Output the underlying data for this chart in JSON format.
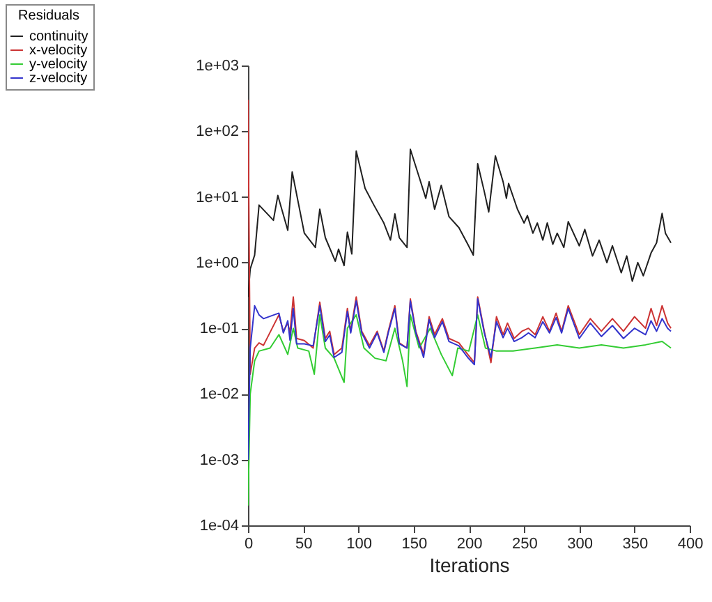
{
  "chart_data": {
    "type": "line",
    "xlabel": "Iterations",
    "legend_title": "Residuals",
    "legend": "top left",
    "log": "y",
    "grid": false,
    "marker": "none",
    "line_style": "solid",
    "xlim": [
      0,
      400
    ],
    "xticks": [
      0,
      50,
      100,
      150,
      200,
      250,
      300,
      350,
      400
    ],
    "ylim": [
      0.0001,
      1000
    ],
    "yticks": [
      {
        "value": 1000,
        "label": "1e+03"
      },
      {
        "value": 100,
        "label": "1e+02"
      },
      {
        "value": 10,
        "label": "1e+01"
      },
      {
        "value": 1,
        "label": "1e+00"
      },
      {
        "value": 0.1,
        "label": "1e-01"
      },
      {
        "value": 0.01,
        "label": "1e-02"
      },
      {
        "value": 0.001,
        "label": "1e-03"
      },
      {
        "value": 0.0001,
        "label": "1e-04"
      }
    ],
    "series": [
      {
        "name": "continuity",
        "color": "#202020",
        "x": [
          0,
          2,
          6,
          10,
          23,
          27,
          36,
          40,
          51,
          61,
          65,
          70,
          79,
          82,
          87,
          90,
          94,
          98,
          106,
          114,
          123,
          129,
          133,
          137,
          144,
          147,
          155,
          161,
          164,
          169,
          175,
          182,
          191,
          199,
          204,
          208,
          214,
          218,
          224,
          231,
          234,
          236,
          244,
          250,
          253,
          258,
          262,
          267,
          271,
          276,
          280,
          286,
          290,
          300,
          305,
          312,
          318,
          325,
          330,
          338,
          343,
          348,
          353,
          358,
          365,
          370,
          375,
          378,
          383
        ],
        "values": [
          0.3,
          0.8,
          1.3,
          7.5,
          4.4,
          10.5,
          3.1,
          24,
          2.8,
          1.7,
          6.5,
          2.4,
          1.05,
          1.6,
          0.9,
          2.9,
          1.35,
          50,
          13.5,
          7.5,
          4,
          2.2,
          5.5,
          2.4,
          1.7,
          53,
          20,
          9.5,
          17,
          6.5,
          15,
          5,
          3.4,
          1.9,
          1.3,
          32,
          12,
          5.9,
          42,
          17,
          9.5,
          16,
          6.5,
          4,
          5.2,
          2.8,
          4,
          2.2,
          4,
          1.9,
          2.8,
          1.7,
          4.2,
          1.8,
          3.2,
          1.26,
          2.2,
          1.0,
          1.8,
          0.7,
          1.26,
          0.52,
          1.0,
          0.63,
          1.4,
          2.0,
          5.6,
          2.8,
          2.0
        ]
      },
      {
        "name": "x-velocity",
        "color": "#cc3333",
        "x": [
          0,
          2,
          6,
          10,
          14,
          28,
          32,
          36,
          38,
          41,
          44,
          51,
          59,
          65,
          70,
          74,
          78,
          85,
          90,
          93,
          98,
          103,
          110,
          117,
          123,
          127,
          133,
          137,
          144,
          147,
          152,
          159,
          164,
          169,
          176,
          182,
          191,
          199,
          205,
          208,
          214,
          220,
          225,
          231,
          235,
          241,
          248,
          254,
          260,
          267,
          273,
          279,
          284,
          290,
          300,
          310,
          320,
          330,
          340,
          350,
          360,
          365,
          370,
          375,
          380,
          383
        ],
        "values": [
          300,
          0.02,
          0.05,
          0.06,
          0.055,
          0.16,
          0.09,
          0.12,
          0.085,
          0.3,
          0.07,
          0.065,
          0.05,
          0.25,
          0.07,
          0.09,
          0.04,
          0.05,
          0.2,
          0.09,
          0.3,
          0.09,
          0.055,
          0.09,
          0.045,
          0.09,
          0.22,
          0.06,
          0.05,
          0.28,
          0.09,
          0.04,
          0.15,
          0.08,
          0.14,
          0.07,
          0.06,
          0.04,
          0.03,
          0.3,
          0.09,
          0.03,
          0.15,
          0.08,
          0.12,
          0.07,
          0.09,
          0.1,
          0.08,
          0.15,
          0.09,
          0.17,
          0.09,
          0.22,
          0.08,
          0.14,
          0.09,
          0.14,
          0.09,
          0.15,
          0.1,
          0.2,
          0.11,
          0.22,
          0.12,
          0.1
        ]
      },
      {
        "name": "y-velocity",
        "color": "#33cc33",
        "x": [
          0,
          2,
          6,
          10,
          20,
          28,
          36,
          41,
          45,
          55,
          60,
          65,
          70,
          78,
          87,
          90,
          98,
          105,
          115,
          125,
          133,
          140,
          144,
          147,
          155,
          165,
          175,
          185,
          190,
          200,
          208,
          215,
          225,
          240,
          260,
          280,
          300,
          320,
          340,
          360,
          375,
          383
        ],
        "values": [
          0.0002,
          0.01,
          0.032,
          0.045,
          0.05,
          0.08,
          0.04,
          0.1,
          0.05,
          0.045,
          0.02,
          0.16,
          0.05,
          0.035,
          0.015,
          0.1,
          0.16,
          0.05,
          0.035,
          0.032,
          0.1,
          0.032,
          0.013,
          0.16,
          0.05,
          0.1,
          0.04,
          0.019,
          0.05,
          0.045,
          0.16,
          0.05,
          0.045,
          0.045,
          0.05,
          0.056,
          0.05,
          0.056,
          0.05,
          0.056,
          0.063,
          0.05
        ]
      },
      {
        "name": "z-velocity",
        "color": "#3333cc",
        "x": [
          0,
          2,
          6,
          10,
          14,
          28,
          32,
          36,
          38,
          41,
          44,
          51,
          59,
          65,
          70,
          74,
          78,
          85,
          90,
          93,
          98,
          103,
          110,
          117,
          123,
          127,
          133,
          137,
          144,
          147,
          152,
          159,
          164,
          169,
          176,
          182,
          191,
          199,
          205,
          208,
          214,
          220,
          225,
          231,
          235,
          241,
          248,
          254,
          260,
          267,
          273,
          279,
          284,
          290,
          300,
          310,
          320,
          330,
          340,
          350,
          360,
          365,
          370,
          375,
          380,
          383
        ],
        "values": [
          0.001,
          0.05,
          0.22,
          0.16,
          0.14,
          0.17,
          0.085,
          0.13,
          0.066,
          0.2,
          0.058,
          0.058,
          0.054,
          0.22,
          0.063,
          0.079,
          0.036,
          0.043,
          0.18,
          0.085,
          0.26,
          0.085,
          0.05,
          0.085,
          0.043,
          0.085,
          0.2,
          0.058,
          0.05,
          0.26,
          0.085,
          0.036,
          0.135,
          0.072,
          0.126,
          0.063,
          0.054,
          0.036,
          0.028,
          0.28,
          0.085,
          0.036,
          0.126,
          0.072,
          0.1,
          0.063,
          0.072,
          0.085,
          0.072,
          0.126,
          0.085,
          0.145,
          0.085,
          0.2,
          0.07,
          0.12,
          0.075,
          0.11,
          0.07,
          0.1,
          0.08,
          0.13,
          0.09,
          0.14,
          0.1,
          0.09
        ]
      }
    ]
  }
}
